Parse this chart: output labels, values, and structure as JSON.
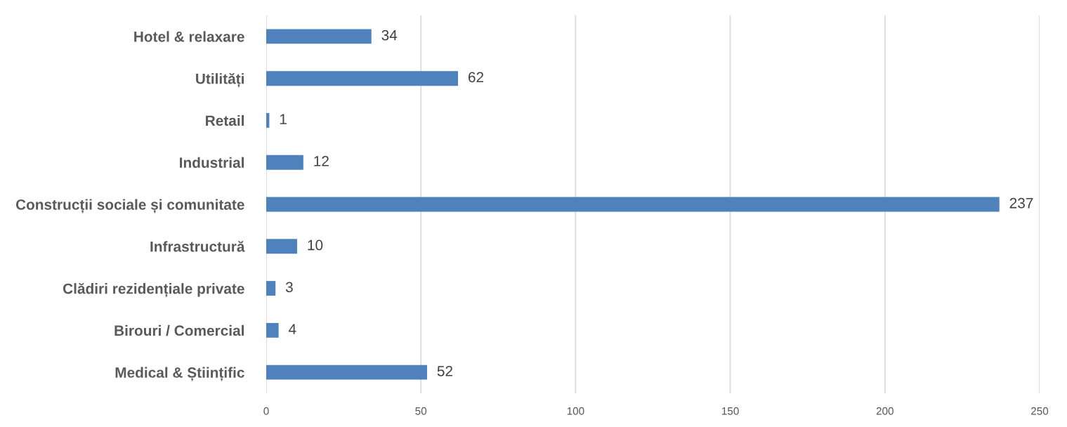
{
  "chart_data": {
    "type": "bar",
    "orientation": "horizontal",
    "categories": [
      "Hotel & relaxare",
      "Utilități",
      "Retail",
      "Industrial",
      "Construcții sociale și comunitate",
      "Infrastructură",
      "Clădiri rezidențiale private",
      "Birouri / Comercial",
      "Medical & Științific"
    ],
    "values": [
      34,
      62,
      1,
      12,
      237,
      10,
      3,
      4,
      52
    ],
    "color": "#4f81bd",
    "xlim": [
      0,
      250
    ],
    "xticks": [
      0,
      50,
      100,
      150,
      200,
      250
    ],
    "grid": "x",
    "data_labels": true
  }
}
